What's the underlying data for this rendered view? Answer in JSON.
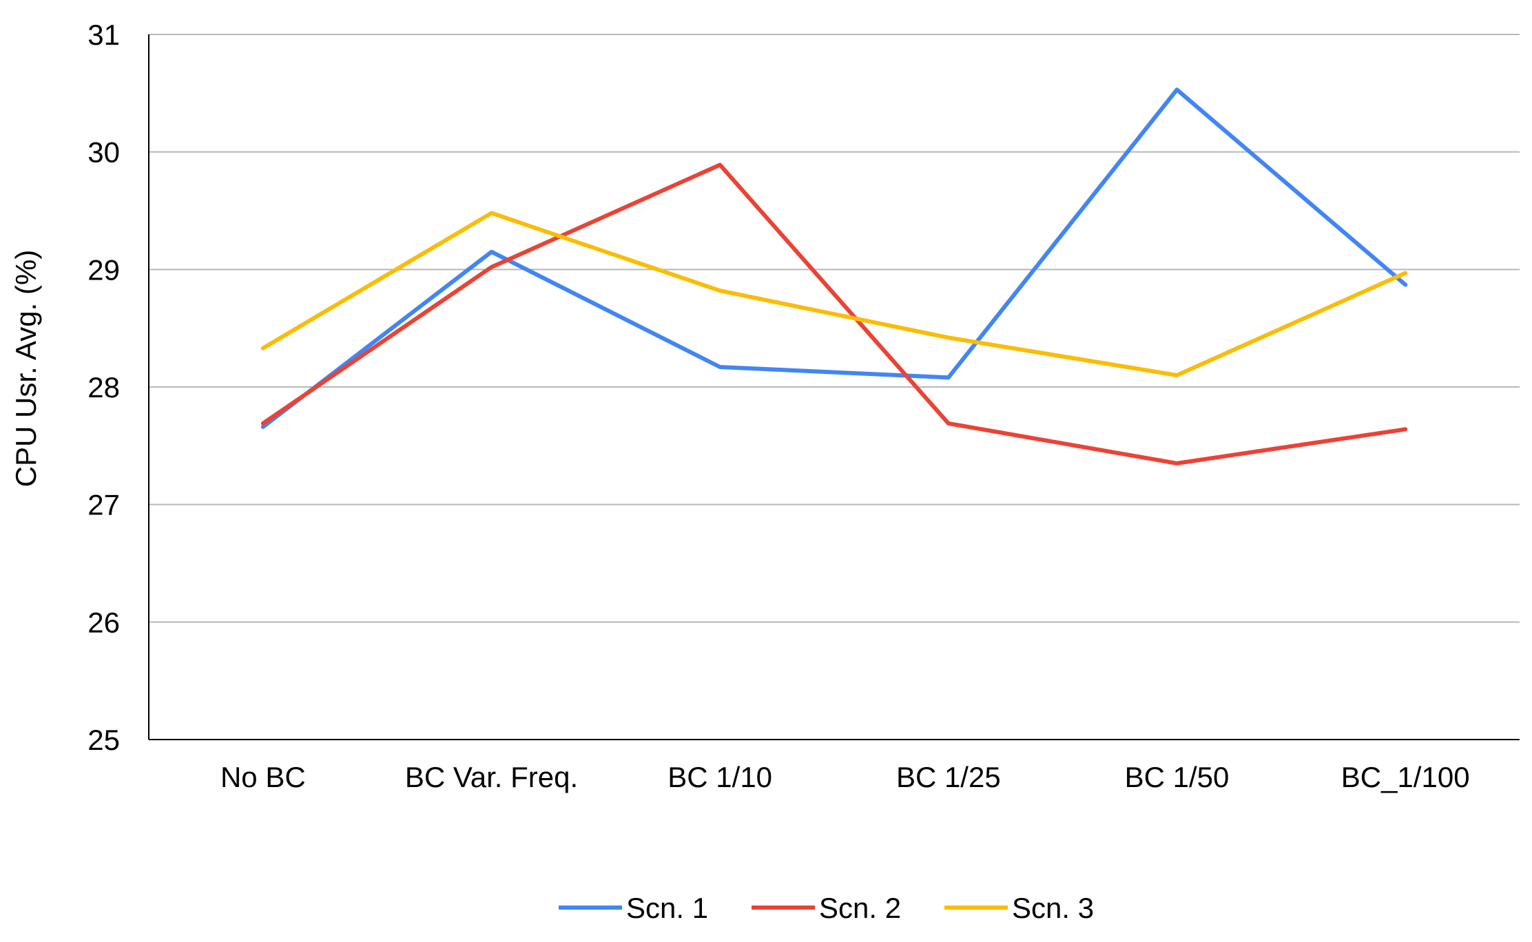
{
  "chart_data": {
    "type": "line",
    "title": "",
    "xlabel": "",
    "ylabel": "CPU Usr. Avg. (%)",
    "categories": [
      "No BC",
      "BC Var. Freq.",
      "BC 1/10",
      "BC 1/25",
      "BC 1/50",
      "BC_1/100"
    ],
    "ylim": [
      25,
      31
    ],
    "yticks": [
      25,
      26,
      27,
      28,
      29,
      30,
      31
    ],
    "grid": true,
    "legend_position": "bottom",
    "series": [
      {
        "name": "Scn. 1",
        "color": "#4285F4",
        "values": [
          27.66,
          29.15,
          28.17,
          28.08,
          30.53,
          28.87
        ]
      },
      {
        "name": "Scn. 2",
        "color": "#EA4335",
        "values": [
          27.69,
          29.02,
          29.89,
          27.69,
          27.35,
          27.64
        ]
      },
      {
        "name": "Scn. 3",
        "color": "#FBBC04",
        "values": [
          28.33,
          29.48,
          28.82,
          28.42,
          28.1,
          28.97
        ]
      }
    ]
  }
}
